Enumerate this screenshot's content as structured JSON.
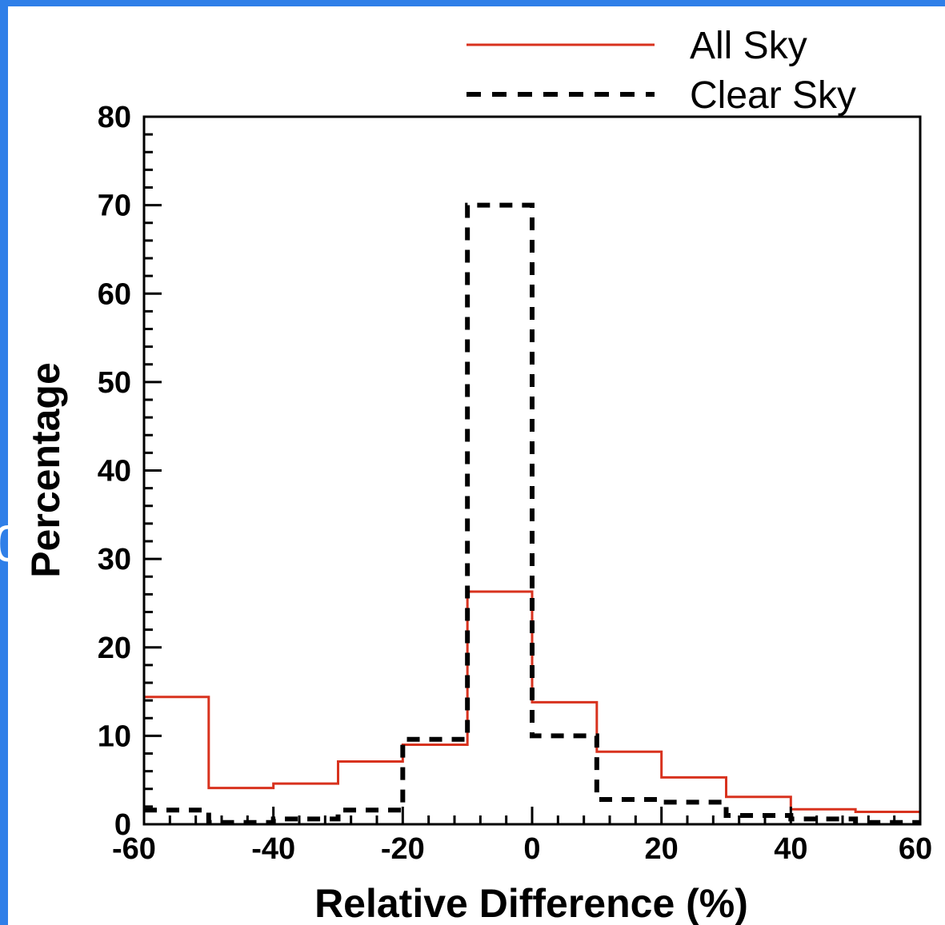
{
  "chart_data": {
    "type": "line",
    "style": "step-histogram",
    "xlabel": "Relative Difference (%)",
    "ylabel": "Percentage",
    "xlim": [
      -60,
      60
    ],
    "ylim": [
      0,
      80
    ],
    "x_ticks": [
      -60,
      -40,
      -20,
      0,
      20,
      40,
      60
    ],
    "y_ticks": [
      0,
      10,
      20,
      30,
      40,
      50,
      60,
      70,
      80
    ],
    "grid": false,
    "legend_position": "top-right",
    "bin_edges": [
      -60,
      -50,
      -40,
      -30,
      -20,
      -10,
      0,
      10,
      20,
      30,
      40,
      50,
      60
    ],
    "series": [
      {
        "name": "All Sky",
        "color": "#d8321e",
        "line_style": "solid",
        "values": [
          14.4,
          4.1,
          4.6,
          7.1,
          9.0,
          26.3,
          13.8,
          8.2,
          5.3,
          3.1,
          1.7,
          1.4
        ]
      },
      {
        "name": "Clear Sky",
        "color": "#000000",
        "line_style": "dashed",
        "values": [
          1.6,
          0.2,
          0.6,
          1.6,
          9.6,
          70.0,
          10.0,
          2.8,
          2.5,
          1.0,
          0.6,
          0.2
        ]
      }
    ]
  }
}
